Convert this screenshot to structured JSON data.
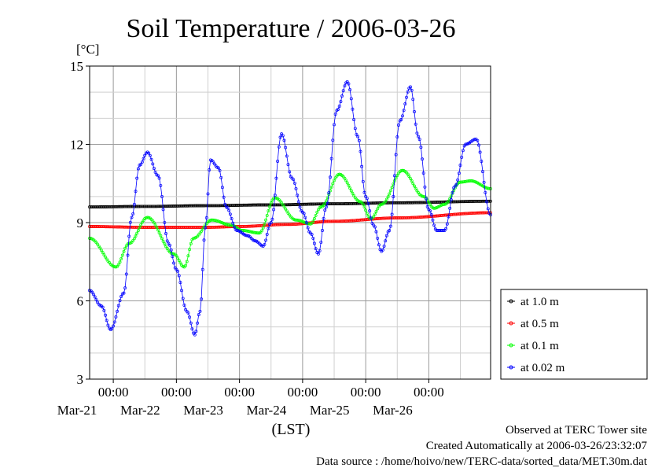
{
  "chart_data": {
    "type": "line",
    "title": "Soil Temperature / 2006-03-26",
    "ylabel": "[°C]",
    "xlabel": "(LST)",
    "ylim": [
      3,
      15
    ],
    "yticks": [
      "3",
      "6",
      "9",
      "12",
      "15"
    ],
    "xlim": [
      "2006-03-20T15:00",
      "2006-03-26T23:30"
    ],
    "x_hour_ticks": [
      {
        "x": "2006-03-21T00:00",
        "label": "00:00"
      },
      {
        "x": "2006-03-22T00:00",
        "label": "00:00"
      },
      {
        "x": "2006-03-23T00:00",
        "label": "00:00"
      },
      {
        "x": "2006-03-24T00:00",
        "label": "00:00"
      },
      {
        "x": "2006-03-25T00:00",
        "label": "00:00"
      },
      {
        "x": "2006-03-26T00:00",
        "label": "00:00"
      }
    ],
    "x_date_ticks": [
      {
        "x": "2006-03-21T00:00",
        "label": "Mar-21"
      },
      {
        "x": "2006-03-22T00:00",
        "label": "Mar-22"
      },
      {
        "x": "2006-03-23T00:00",
        "label": "Mar-23"
      },
      {
        "x": "2006-03-24T00:00",
        "label": "Mar-24"
      },
      {
        "x": "2006-03-25T00:00",
        "label": "Mar-25"
      },
      {
        "x": "2006-03-26T00:00",
        "label": "Mar-26"
      }
    ],
    "grid": true,
    "legend_position": "right",
    "series": [
      {
        "name": "at 1.0 m",
        "color": "#000000",
        "x": [
          "2006-03-20T15:00",
          "2006-03-21T12:00",
          "2006-03-22T12:00",
          "2006-03-23T12:00",
          "2006-03-24T12:00",
          "2006-03-25T12:00",
          "2006-03-26T23:30"
        ],
        "y": [
          9.6,
          9.62,
          9.65,
          9.68,
          9.72,
          9.76,
          9.82
        ]
      },
      {
        "name": "at 0.5 m",
        "color": "#ff0000",
        "x": [
          "2006-03-20T15:00",
          "2006-03-21T12:00",
          "2006-03-22T12:00",
          "2006-03-23T00:00",
          "2006-03-23T18:00",
          "2006-03-24T12:00",
          "2006-03-25T12:00",
          "2006-03-26T23:30"
        ],
        "y": [
          8.85,
          8.82,
          8.82,
          8.85,
          8.93,
          9.05,
          9.18,
          9.38
        ]
      },
      {
        "name": "at 0.1 m",
        "color": "#00ff00",
        "x": [
          "2006-03-20T15:00",
          "2006-03-21T01:00",
          "2006-03-21T06:00",
          "2006-03-21T13:00",
          "2006-03-21T23:00",
          "2006-03-22T03:00",
          "2006-03-22T06:30",
          "2006-03-22T13:30",
          "2006-03-22T21:00",
          "2006-03-23T01:00",
          "2006-03-23T07:30",
          "2006-03-23T13:30",
          "2006-03-23T21:30",
          "2006-03-24T03:00",
          "2006-03-24T07:00",
          "2006-03-24T14:00",
          "2006-03-24T22:00",
          "2006-03-25T02:00",
          "2006-03-25T06:00",
          "2006-03-25T14:00",
          "2006-03-25T22:00",
          "2006-03-26T02:00",
          "2006-03-26T06:00",
          "2006-03-26T12:00",
          "2006-03-26T16:00",
          "2006-03-26T23:30"
        ],
        "y": [
          8.4,
          7.3,
          8.2,
          9.2,
          7.8,
          7.3,
          8.4,
          9.1,
          8.9,
          8.7,
          8.6,
          9.95,
          9.1,
          8.95,
          9.6,
          10.85,
          9.8,
          9.15,
          9.7,
          11.0,
          10.0,
          9.55,
          9.7,
          10.55,
          10.6,
          10.3
        ]
      },
      {
        "name": "at 0.02 m",
        "color": "#0000ff",
        "x": [
          "2006-03-20T15:00",
          "2006-03-20T19:30",
          "2006-03-20T23:00",
          "2006-03-21T04:00",
          "2006-03-21T07:00",
          "2006-03-21T10:00",
          "2006-03-21T13:00",
          "2006-03-21T17:00",
          "2006-03-21T21:00",
          "2006-03-22T00:00",
          "2006-03-22T04:00",
          "2006-03-22T07:00",
          "2006-03-22T09:00",
          "2006-03-22T11:00",
          "2006-03-22T13:00",
          "2006-03-22T16:00",
          "2006-03-22T19:00",
          "2006-03-22T23:00",
          "2006-03-23T03:00",
          "2006-03-23T06:00",
          "2006-03-23T09:00",
          "2006-03-23T12:00",
          "2006-03-23T16:00",
          "2006-03-23T20:00",
          "2006-03-24T00:00",
          "2006-03-24T03:00",
          "2006-03-24T06:00",
          "2006-03-24T09:00",
          "2006-03-24T13:00",
          "2006-03-24T17:00",
          "2006-03-24T21:00",
          "2006-03-25T00:00",
          "2006-03-25T03:00",
          "2006-03-25T06:00",
          "2006-03-25T09:00",
          "2006-03-25T13:00",
          "2006-03-25T17:00",
          "2006-03-25T20:00",
          "2006-03-26T00:00",
          "2006-03-26T03:00",
          "2006-03-26T06:00",
          "2006-03-26T10:00",
          "2006-03-26T14:00",
          "2006-03-26T18:00",
          "2006-03-26T23:30"
        ],
        "y": [
          6.4,
          5.8,
          4.9,
          6.3,
          9.2,
          11.2,
          11.7,
          10.8,
          8.2,
          7.2,
          5.6,
          4.7,
          5.6,
          8.8,
          11.4,
          11.1,
          9.6,
          8.7,
          8.5,
          8.3,
          8.1,
          9.0,
          12.4,
          10.7,
          9.4,
          8.6,
          7.8,
          9.6,
          13.3,
          14.4,
          12.3,
          10.0,
          8.9,
          7.9,
          8.7,
          12.9,
          14.2,
          12.3,
          9.5,
          8.7,
          8.7,
          10.4,
          12.0,
          12.2,
          9.3
        ]
      }
    ]
  },
  "footer": {
    "line1": "Observed at TERC Tower site",
    "line2": "Created Automatically at 2006-03-26/23:32:07",
    "line3": "Data source : /home/hoivo/new/TERC-data/sorted_data/MET.30m.dat"
  }
}
